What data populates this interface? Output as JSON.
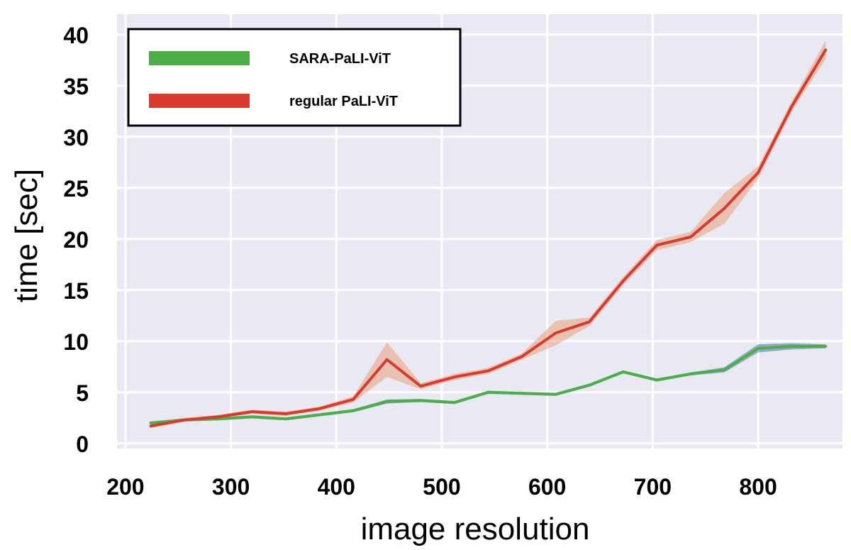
{
  "chart_data": {
    "type": "line",
    "title": "",
    "xlabel": "image resolution",
    "ylabel": "time [sec]",
    "xlim": [
      192,
      880
    ],
    "ylim": [
      -0.5,
      42
    ],
    "xticks": [
      200,
      300,
      400,
      500,
      600,
      700,
      800
    ],
    "yticks": [
      0,
      5,
      10,
      15,
      20,
      25,
      30,
      35,
      40
    ],
    "grid": true,
    "legend": "top-left",
    "background_color": "#e9e9f3",
    "series": [
      {
        "name": "SARA-PaLI-ViT",
        "color": "#4caf46",
        "band_color": "#4c72b0",
        "x": [
          224,
          256,
          288,
          320,
          352,
          384,
          416,
          448,
          480,
          512,
          544,
          576,
          608,
          640,
          672,
          704,
          736,
          768,
          800,
          832,
          864
        ],
        "y": [
          2.0,
          2.3,
          2.4,
          2.6,
          2.4,
          2.8,
          3.2,
          4.1,
          4.2,
          4.0,
          5.0,
          4.9,
          4.8,
          5.7,
          7.0,
          6.2,
          6.8,
          7.2,
          9.3,
          9.5,
          9.5
        ],
        "band": [
          0.15,
          0.15,
          0.15,
          0.15,
          0.15,
          0.15,
          0.15,
          0.2,
          0.15,
          0.15,
          0.15,
          0.15,
          0.15,
          0.15,
          0.15,
          0.15,
          0.15,
          0.25,
          0.4,
          0.3,
          0.2
        ]
      },
      {
        "name": "regular PaLI-ViT",
        "color": "#d93a2b",
        "band_color": "#e9a07a",
        "x": [
          224,
          256,
          288,
          320,
          352,
          384,
          416,
          448,
          480,
          512,
          544,
          576,
          608,
          640,
          672,
          704,
          736,
          768,
          800,
          832,
          864
        ],
        "y": [
          1.7,
          2.3,
          2.6,
          3.1,
          2.9,
          3.4,
          4.3,
          8.2,
          5.6,
          6.5,
          7.1,
          8.5,
          10.8,
          11.9,
          15.9,
          19.4,
          20.2,
          23.0,
          26.5,
          33.0,
          38.5
        ],
        "band": [
          0.2,
          0.2,
          0.2,
          0.2,
          0.2,
          0.2,
          0.3,
          1.7,
          0.3,
          0.3,
          0.3,
          0.3,
          1.2,
          0.4,
          0.4,
          0.5,
          0.5,
          1.5,
          0.6,
          0.5,
          0.9
        ]
      }
    ]
  }
}
